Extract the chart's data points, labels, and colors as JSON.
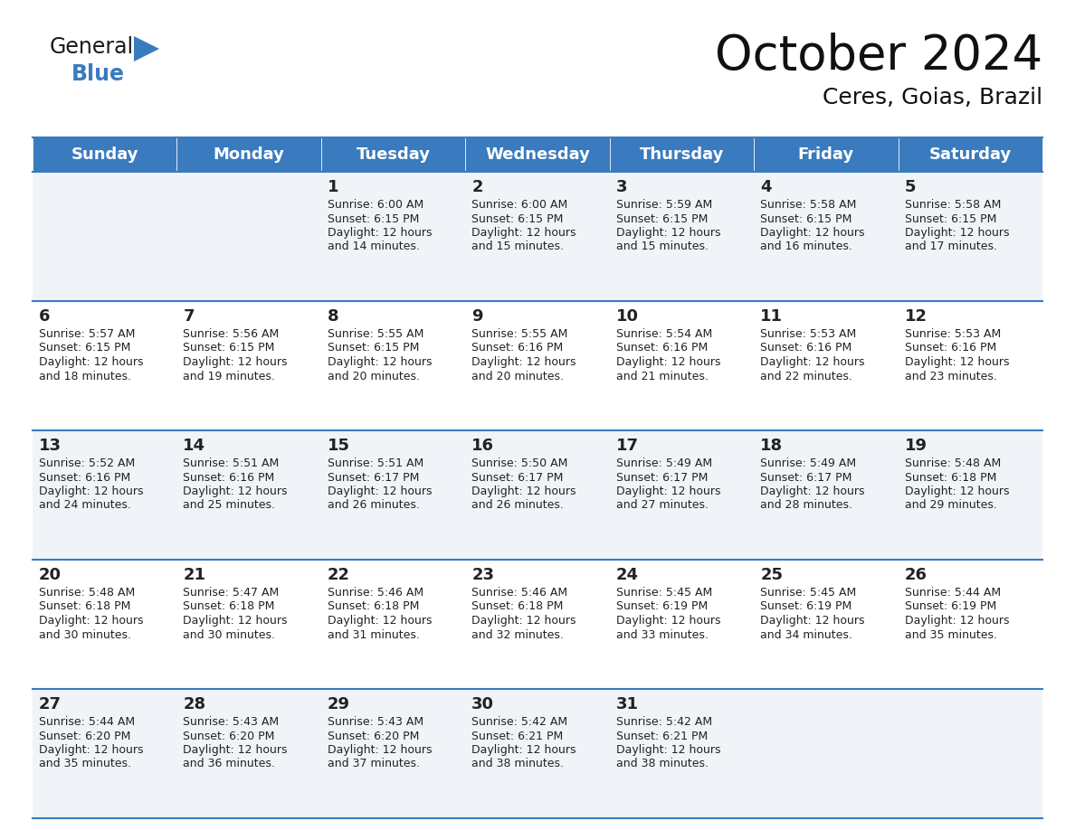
{
  "title": "October 2024",
  "subtitle": "Ceres, Goias, Brazil",
  "header_color": "#3a7bbf",
  "header_text_color": "#ffffff",
  "cell_bg_even": "#f0f4f8",
  "cell_bg_odd": "#ffffff",
  "border_color": "#3a7bbf",
  "text_color": "#222222",
  "day_headers": [
    "Sunday",
    "Monday",
    "Tuesday",
    "Wednesday",
    "Thursday",
    "Friday",
    "Saturday"
  ],
  "title_fontsize": 38,
  "subtitle_fontsize": 18,
  "header_fontsize": 13,
  "cell_day_fontsize": 13,
  "cell_text_fontsize": 9.0,
  "weeks": [
    [
      {
        "day": "",
        "lines": []
      },
      {
        "day": "",
        "lines": []
      },
      {
        "day": "1",
        "lines": [
          "Sunrise: 6:00 AM",
          "Sunset: 6:15 PM",
          "Daylight: 12 hours",
          "and 14 minutes."
        ]
      },
      {
        "day": "2",
        "lines": [
          "Sunrise: 6:00 AM",
          "Sunset: 6:15 PM",
          "Daylight: 12 hours",
          "and 15 minutes."
        ]
      },
      {
        "day": "3",
        "lines": [
          "Sunrise: 5:59 AM",
          "Sunset: 6:15 PM",
          "Daylight: 12 hours",
          "and 15 minutes."
        ]
      },
      {
        "day": "4",
        "lines": [
          "Sunrise: 5:58 AM",
          "Sunset: 6:15 PM",
          "Daylight: 12 hours",
          "and 16 minutes."
        ]
      },
      {
        "day": "5",
        "lines": [
          "Sunrise: 5:58 AM",
          "Sunset: 6:15 PM",
          "Daylight: 12 hours",
          "and 17 minutes."
        ]
      }
    ],
    [
      {
        "day": "6",
        "lines": [
          "Sunrise: 5:57 AM",
          "Sunset: 6:15 PM",
          "Daylight: 12 hours",
          "and 18 minutes."
        ]
      },
      {
        "day": "7",
        "lines": [
          "Sunrise: 5:56 AM",
          "Sunset: 6:15 PM",
          "Daylight: 12 hours",
          "and 19 minutes."
        ]
      },
      {
        "day": "8",
        "lines": [
          "Sunrise: 5:55 AM",
          "Sunset: 6:15 PM",
          "Daylight: 12 hours",
          "and 20 minutes."
        ]
      },
      {
        "day": "9",
        "lines": [
          "Sunrise: 5:55 AM",
          "Sunset: 6:16 PM",
          "Daylight: 12 hours",
          "and 20 minutes."
        ]
      },
      {
        "day": "10",
        "lines": [
          "Sunrise: 5:54 AM",
          "Sunset: 6:16 PM",
          "Daylight: 12 hours",
          "and 21 minutes."
        ]
      },
      {
        "day": "11",
        "lines": [
          "Sunrise: 5:53 AM",
          "Sunset: 6:16 PM",
          "Daylight: 12 hours",
          "and 22 minutes."
        ]
      },
      {
        "day": "12",
        "lines": [
          "Sunrise: 5:53 AM",
          "Sunset: 6:16 PM",
          "Daylight: 12 hours",
          "and 23 minutes."
        ]
      }
    ],
    [
      {
        "day": "13",
        "lines": [
          "Sunrise: 5:52 AM",
          "Sunset: 6:16 PM",
          "Daylight: 12 hours",
          "and 24 minutes."
        ]
      },
      {
        "day": "14",
        "lines": [
          "Sunrise: 5:51 AM",
          "Sunset: 6:16 PM",
          "Daylight: 12 hours",
          "and 25 minutes."
        ]
      },
      {
        "day": "15",
        "lines": [
          "Sunrise: 5:51 AM",
          "Sunset: 6:17 PM",
          "Daylight: 12 hours",
          "and 26 minutes."
        ]
      },
      {
        "day": "16",
        "lines": [
          "Sunrise: 5:50 AM",
          "Sunset: 6:17 PM",
          "Daylight: 12 hours",
          "and 26 minutes."
        ]
      },
      {
        "day": "17",
        "lines": [
          "Sunrise: 5:49 AM",
          "Sunset: 6:17 PM",
          "Daylight: 12 hours",
          "and 27 minutes."
        ]
      },
      {
        "day": "18",
        "lines": [
          "Sunrise: 5:49 AM",
          "Sunset: 6:17 PM",
          "Daylight: 12 hours",
          "and 28 minutes."
        ]
      },
      {
        "day": "19",
        "lines": [
          "Sunrise: 5:48 AM",
          "Sunset: 6:18 PM",
          "Daylight: 12 hours",
          "and 29 minutes."
        ]
      }
    ],
    [
      {
        "day": "20",
        "lines": [
          "Sunrise: 5:48 AM",
          "Sunset: 6:18 PM",
          "Daylight: 12 hours",
          "and 30 minutes."
        ]
      },
      {
        "day": "21",
        "lines": [
          "Sunrise: 5:47 AM",
          "Sunset: 6:18 PM",
          "Daylight: 12 hours",
          "and 30 minutes."
        ]
      },
      {
        "day": "22",
        "lines": [
          "Sunrise: 5:46 AM",
          "Sunset: 6:18 PM",
          "Daylight: 12 hours",
          "and 31 minutes."
        ]
      },
      {
        "day": "23",
        "lines": [
          "Sunrise: 5:46 AM",
          "Sunset: 6:18 PM",
          "Daylight: 12 hours",
          "and 32 minutes."
        ]
      },
      {
        "day": "24",
        "lines": [
          "Sunrise: 5:45 AM",
          "Sunset: 6:19 PM",
          "Daylight: 12 hours",
          "and 33 minutes."
        ]
      },
      {
        "day": "25",
        "lines": [
          "Sunrise: 5:45 AM",
          "Sunset: 6:19 PM",
          "Daylight: 12 hours",
          "and 34 minutes."
        ]
      },
      {
        "day": "26",
        "lines": [
          "Sunrise: 5:44 AM",
          "Sunset: 6:19 PM",
          "Daylight: 12 hours",
          "and 35 minutes."
        ]
      }
    ],
    [
      {
        "day": "27",
        "lines": [
          "Sunrise: 5:44 AM",
          "Sunset: 6:20 PM",
          "Daylight: 12 hours",
          "and 35 minutes."
        ]
      },
      {
        "day": "28",
        "lines": [
          "Sunrise: 5:43 AM",
          "Sunset: 6:20 PM",
          "Daylight: 12 hours",
          "and 36 minutes."
        ]
      },
      {
        "day": "29",
        "lines": [
          "Sunrise: 5:43 AM",
          "Sunset: 6:20 PM",
          "Daylight: 12 hours",
          "and 37 minutes."
        ]
      },
      {
        "day": "30",
        "lines": [
          "Sunrise: 5:42 AM",
          "Sunset: 6:21 PM",
          "Daylight: 12 hours",
          "and 38 minutes."
        ]
      },
      {
        "day": "31",
        "lines": [
          "Sunrise: 5:42 AM",
          "Sunset: 6:21 PM",
          "Daylight: 12 hours",
          "and 38 minutes."
        ]
      },
      {
        "day": "",
        "lines": []
      },
      {
        "day": "",
        "lines": []
      }
    ]
  ],
  "logo_general_color": "#1a1a1a",
  "logo_blue_color": "#3a7bbf",
  "logo_triangle_color": "#3a7bbf"
}
